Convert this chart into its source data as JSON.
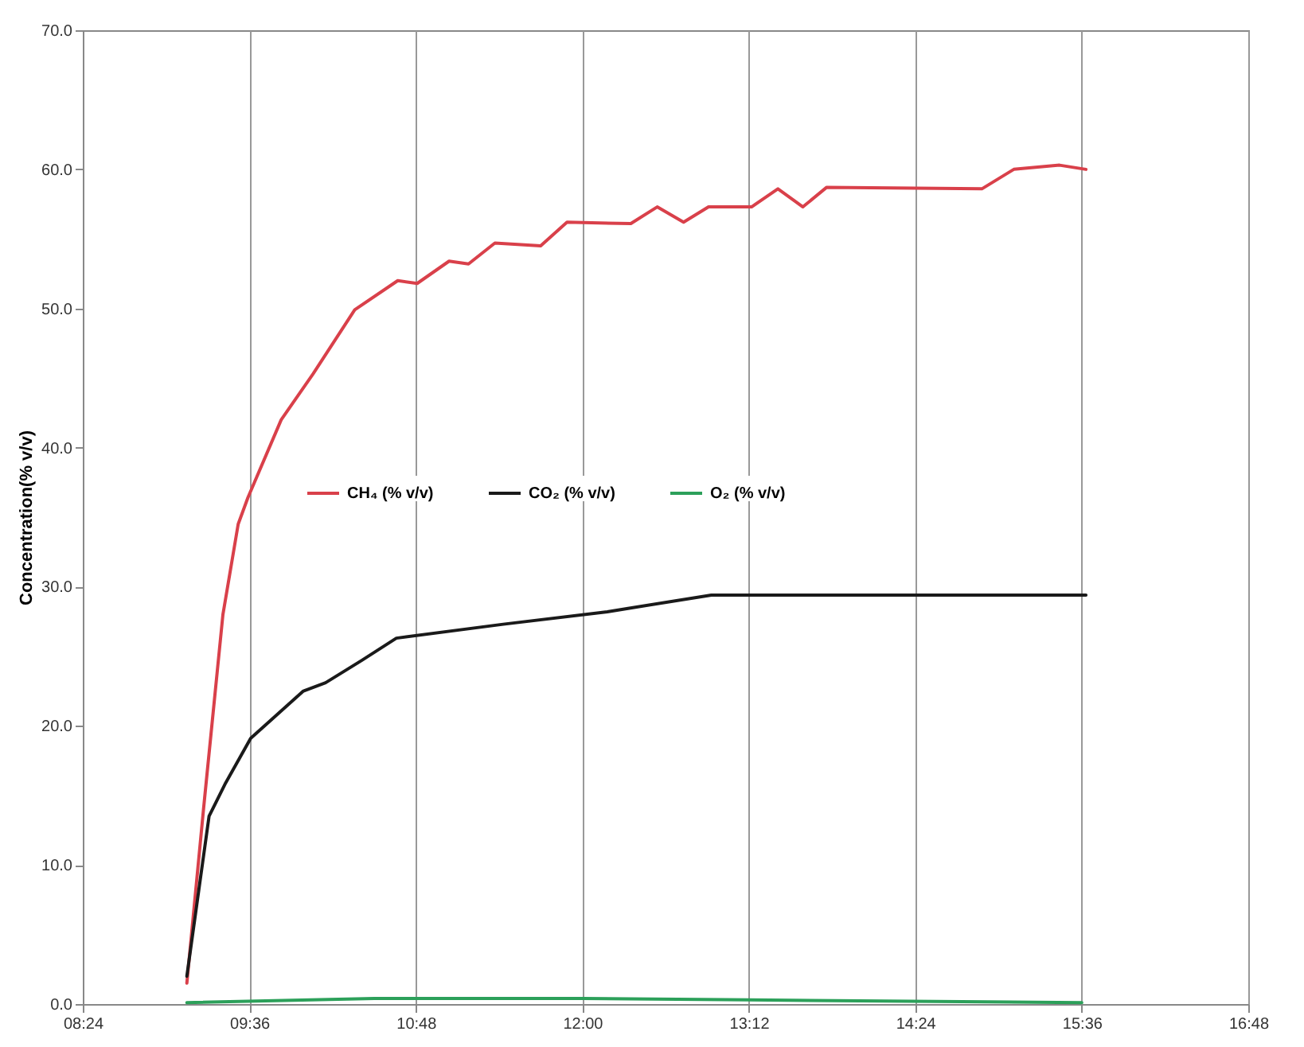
{
  "chart_data": {
    "type": "line",
    "ylabel": "Concentration(% v/v)",
    "xlim": [
      8.4,
      16.8
    ],
    "xticks": [
      {
        "value": 8.4,
        "label": "08:24"
      },
      {
        "value": 9.6,
        "label": "09:36"
      },
      {
        "value": 10.8,
        "label": "10:48"
      },
      {
        "value": 12,
        "label": "12:00"
      },
      {
        "value": 13.2,
        "label": "13:12"
      },
      {
        "value": 14.4,
        "label": "14:24"
      },
      {
        "value": 15.6,
        "label": "15:36"
      },
      {
        "value": 16.8,
        "label": "16:48"
      }
    ],
    "ylim": [
      0,
      70
    ],
    "yticks": [
      {
        "value": 0,
        "label": "0.0"
      },
      {
        "value": 10,
        "label": "10.0"
      },
      {
        "value": 20,
        "label": "20.0"
      },
      {
        "value": 30,
        "label": "30.0"
      },
      {
        "value": 40,
        "label": "40.0"
      },
      {
        "value": 50,
        "label": "50.0"
      },
      {
        "value": 60,
        "label": "60.0"
      },
      {
        "value": 70,
        "label": "70.0"
      }
    ],
    "grid": "x",
    "legend": "left",
    "line_style": "solid",
    "marker": "none",
    "series": [
      {
        "name": "CH₄ (% v/v)",
        "color": "#d9404a",
        "x": [
          9.15,
          9.27,
          9.41,
          9.52,
          9.59,
          9.83,
          10.06,
          10.36,
          10.67,
          10.81,
          11.04,
          11.18,
          11.37,
          11.7,
          11.89,
          12.35,
          12.54,
          12.73,
          12.91,
          13.22,
          13.41,
          13.59,
          13.76,
          14.88,
          15.11,
          15.44,
          15.63
        ],
        "values": [
          1.5,
          14.0,
          28.0,
          34.5,
          36.4,
          42.0,
          45.3,
          49.9,
          52.0,
          51.8,
          53.4,
          53.2,
          54.7,
          54.5,
          56.2,
          56.1,
          57.3,
          56.2,
          57.3,
          57.3,
          58.6,
          57.3,
          58.7,
          58.6,
          60.0,
          60.3,
          60.0
        ]
      },
      {
        "name": "CO₂ (% v/v)",
        "color": "#1a1a1a",
        "x": [
          9.15,
          9.31,
          9.43,
          9.61,
          9.8,
          9.99,
          10.15,
          10.41,
          10.66,
          11.43,
          12.18,
          12.93,
          15.63
        ],
        "values": [
          2.0,
          13.5,
          15.9,
          19.1,
          20.8,
          22.5,
          23.1,
          24.7,
          26.3,
          27.3,
          28.2,
          29.4,
          29.4
        ]
      },
      {
        "name": "O₂ (% v/v)",
        "color": "#2ca05a",
        "x": [
          9.15,
          10.5,
          12.0,
          13.2,
          15.6
        ],
        "values": [
          0.1,
          0.4,
          0.4,
          0.3,
          0.1
        ]
      }
    ]
  }
}
